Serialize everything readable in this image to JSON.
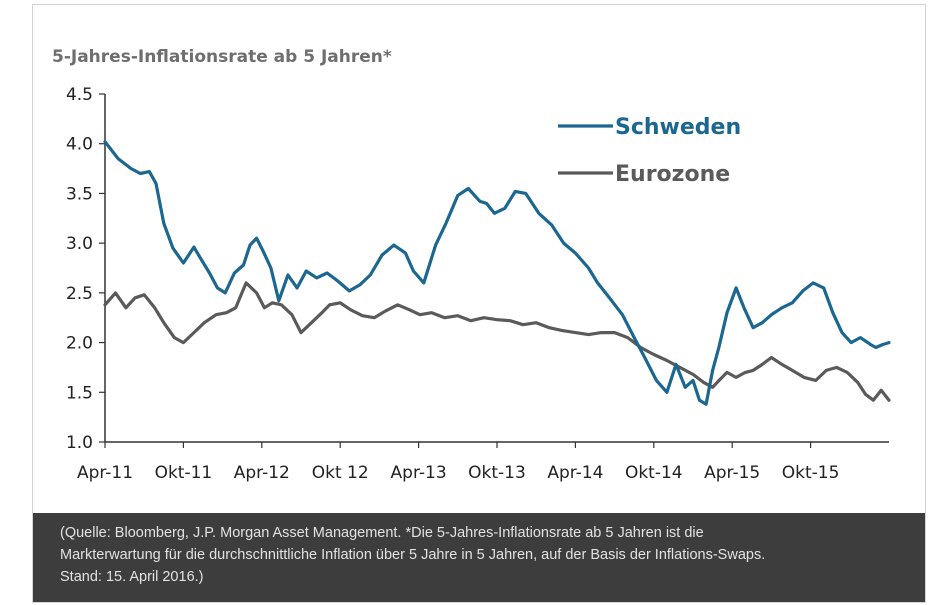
{
  "chart_data": {
    "type": "line",
    "title": "5-Jahres-Inflationsrate ab 5 Jahren*",
    "xlabel": "",
    "ylabel": "",
    "ylim": [
      1.0,
      4.5
    ],
    "yticks": [
      "1.0",
      "1.5",
      "2.0",
      "2.5",
      "3.0",
      "3.5",
      "4.0",
      "4.5"
    ],
    "xlim": [
      0,
      60
    ],
    "categories": [
      "Apr-11",
      "Okt-11",
      "Apr-12",
      "Okt 12",
      "Apr-13",
      "Okt-13",
      "Apr-14",
      "Okt-14",
      "Apr-15",
      "Okt-15"
    ],
    "legend_position": "top-right",
    "series": [
      {
        "name": "Schweden",
        "color": "#1c6790",
        "x": [
          0,
          1,
          2,
          2.7,
          3.4,
          3.9,
          4.5,
          5.2,
          6,
          6.8,
          7.3,
          8,
          8.6,
          9.2,
          9.9,
          10.6,
          11.1,
          11.6,
          12.1,
          12.7,
          13.3,
          14,
          14.7,
          15.4,
          16.2,
          17,
          17.8,
          18.7,
          19.5,
          20.3,
          21.2,
          22.1,
          23,
          23.6,
          24.4,
          25.3,
          26.1,
          27,
          27.8,
          28.7,
          29.2,
          29.8,
          30.6,
          31.4,
          32.2,
          33.2,
          34.2,
          35.1,
          36,
          37,
          37.7,
          38.6,
          39.6,
          40.5,
          41.3,
          42.2,
          43,
          43.7,
          44.4,
          45,
          45.5,
          46,
          46.5,
          47,
          47.6,
          48.3,
          48.9,
          49.6,
          50.3,
          51,
          51.8,
          52.6,
          53.4,
          54.2,
          55,
          55.7,
          56.4,
          57.1,
          57.8,
          58.6,
          59,
          59.5,
          60
        ],
        "y": [
          4.02,
          3.85,
          3.75,
          3.7,
          3.72,
          3.6,
          3.2,
          2.95,
          2.8,
          2.96,
          2.85,
          2.7,
          2.55,
          2.5,
          2.7,
          2.78,
          2.98,
          3.05,
          2.92,
          2.75,
          2.42,
          2.68,
          2.55,
          2.72,
          2.65,
          2.7,
          2.62,
          2.52,
          2.58,
          2.68,
          2.88,
          2.98,
          2.9,
          2.72,
          2.6,
          2.98,
          3.2,
          3.48,
          3.55,
          3.42,
          3.4,
          3.3,
          3.35,
          3.52,
          3.5,
          3.3,
          3.18,
          3.0,
          2.9,
          2.75,
          2.6,
          2.45,
          2.28,
          2.05,
          1.85,
          1.62,
          1.5,
          1.78,
          1.55,
          1.62,
          1.42,
          1.38,
          1.72,
          1.96,
          2.3,
          2.55,
          2.35,
          2.15,
          2.2,
          2.28,
          2.35,
          2.4,
          2.52,
          2.6,
          2.55,
          2.3,
          2.1,
          2.0,
          2.05,
          1.98,
          1.95,
          1.98,
          2.0
        ]
      },
      {
        "name": "Eurozone",
        "color": "#5a5a5a",
        "x": [
          0,
          0.8,
          1.6,
          2.3,
          3,
          3.8,
          4.5,
          5.3,
          6,
          6.8,
          7.6,
          8.5,
          9.3,
          10,
          10.8,
          11.6,
          12.2,
          12.8,
          13.5,
          14.3,
          15,
          15.8,
          16.6,
          17.2,
          18,
          18.8,
          19.7,
          20.6,
          21.5,
          22.4,
          23.3,
          24.1,
          25,
          26,
          27,
          28,
          29,
          30,
          31,
          32,
          33,
          34,
          35,
          36,
          37,
          38,
          39,
          40,
          41,
          42,
          43,
          44,
          45,
          45.8,
          46.5,
          47,
          47.6,
          48.3,
          49,
          49.6,
          50.3,
          51,
          51.8,
          52.6,
          53.5,
          54.4,
          55.2,
          56,
          56.8,
          57.6,
          58.2,
          58.8,
          59.4,
          60
        ],
        "y": [
          2.38,
          2.5,
          2.35,
          2.45,
          2.48,
          2.35,
          2.2,
          2.05,
          2.0,
          2.1,
          2.2,
          2.28,
          2.3,
          2.35,
          2.6,
          2.5,
          2.35,
          2.4,
          2.38,
          2.28,
          2.1,
          2.2,
          2.3,
          2.38,
          2.4,
          2.33,
          2.27,
          2.25,
          2.32,
          2.38,
          2.33,
          2.28,
          2.3,
          2.25,
          2.27,
          2.22,
          2.25,
          2.23,
          2.22,
          2.18,
          2.2,
          2.15,
          2.12,
          2.1,
          2.08,
          2.1,
          2.1,
          2.05,
          1.95,
          1.88,
          1.82,
          1.75,
          1.68,
          1.6,
          1.55,
          1.62,
          1.7,
          1.65,
          1.7,
          1.72,
          1.78,
          1.85,
          1.78,
          1.72,
          1.65,
          1.62,
          1.72,
          1.75,
          1.7,
          1.6,
          1.48,
          1.42,
          1.52,
          1.42
        ]
      }
    ]
  },
  "caption": {
    "line1": "(Quelle: Bloomberg, J.P. Morgan Asset Management. *Die 5-Jahres-Inflationsrate ab 5 Jahren ist die",
    "line2": "Markterwartung für die durchschnittliche Inflation über 5 Jahre in 5 Jahren, auf der Basis der Inflations-Swaps.",
    "line3": "Stand: 15. April 2016.)"
  }
}
